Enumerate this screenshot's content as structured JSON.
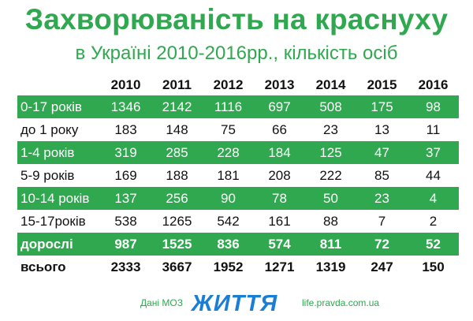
{
  "chart_data": {
    "type": "table",
    "title": "Захворюваність на краснуху",
    "subtitle": "в Україні 2010-2016рр., кількість осіб",
    "columns": [
      "2010",
      "2011",
      "2012",
      "2013",
      "2014",
      "2015",
      "2016"
    ],
    "rows": [
      {
        "label": "0-17 років",
        "values": [
          "1346",
          "2142",
          "1116",
          "697",
          "508",
          "175",
          "98"
        ],
        "highlight": true,
        "bold": false
      },
      {
        "label": "до 1 року",
        "values": [
          "183",
          "148",
          "75",
          "66",
          "23",
          "13",
          "11"
        ],
        "highlight": false,
        "bold": false
      },
      {
        "label": "1-4 років",
        "values": [
          "319",
          "285",
          "228",
          "184",
          "125",
          "47",
          "37"
        ],
        "highlight": true,
        "bold": false
      },
      {
        "label": "5-9 років",
        "values": [
          "169",
          "188",
          "181",
          "208",
          "222",
          "85",
          "44"
        ],
        "highlight": false,
        "bold": false
      },
      {
        "label": "10-14 років",
        "values": [
          "137",
          "256",
          "90",
          "78",
          "50",
          "23",
          "4"
        ],
        "highlight": true,
        "bold": false
      },
      {
        "label": "15-17років",
        "values": [
          "538",
          "1265",
          "542",
          "161",
          "88",
          "7",
          "2"
        ],
        "highlight": false,
        "bold": false
      },
      {
        "label": "дорослі",
        "values": [
          "987",
          "1525",
          "836",
          "574",
          "811",
          "72",
          "52"
        ],
        "highlight": true,
        "bold": true
      },
      {
        "label": "всього",
        "values": [
          "2333",
          "3667",
          "1952",
          "1271",
          "1319",
          "247",
          "150"
        ],
        "highlight": false,
        "bold": true
      }
    ]
  },
  "footer": {
    "source": "Дані МОЗ",
    "logo": "ЖИТТЯ",
    "site": "life.pravda.com.ua"
  },
  "colors": {
    "accent_green": "#2fa84f",
    "logo_blue": "#1a7ed6"
  }
}
